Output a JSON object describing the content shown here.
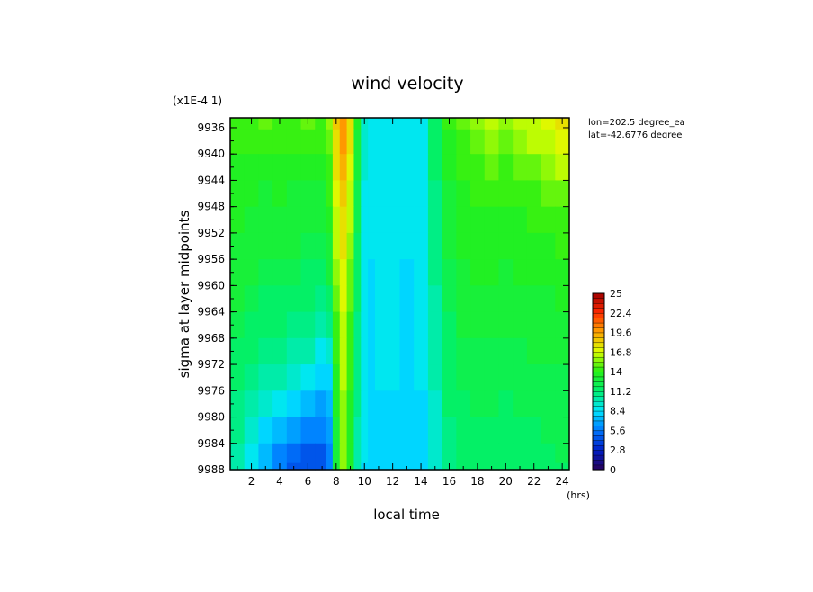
{
  "chart_data": {
    "type": "heatmap",
    "title": "wind velocity",
    "xlabel": "local time",
    "x_unit": "(hrs)",
    "ylabel": "sigma at layer midpoints",
    "y_scale_note": "(x1E-4 1)",
    "annotations": [
      "lon=202.5 degree_ea",
      "lat=-42.6776 degree"
    ],
    "x_ticks": [
      "2",
      "4",
      "6",
      "8",
      "10",
      "12",
      "14",
      "16",
      "18",
      "20",
      "22",
      "24"
    ],
    "y_ticks": [
      "9936",
      "9940",
      "9944",
      "9948",
      "9952",
      "9956",
      "9960",
      "9964",
      "9968",
      "9972",
      "9976",
      "9980",
      "9984",
      "9988"
    ],
    "xlim": [
      0.5,
      24.5
    ],
    "ylim": [
      9988,
      9934.5
    ],
    "colorbar": {
      "min": 0,
      "max": 25,
      "labels": [
        "25",
        "22.4",
        "19.6",
        "16.8",
        "14",
        "11.2",
        "8.4",
        "5.6",
        "2.8",
        "0"
      ]
    },
    "x": [
      1,
      2,
      3,
      4,
      5,
      6,
      7,
      7.5,
      8,
      8.5,
      9,
      9.5,
      10,
      10.5,
      11,
      12,
      13,
      14,
      15,
      16,
      17,
      18,
      19,
      20,
      21,
      22,
      23,
      24
    ],
    "y": [
      9934.5,
      9938,
      9942,
      9946,
      9950,
      9954,
      9958,
      9962,
      9966,
      9970,
      9974,
      9978,
      9982,
      9986,
      9988
    ],
    "z": [
      [
        14.5,
        14.5,
        15.0,
        14.5,
        14.5,
        15.0,
        14.5,
        15.5,
        18.5,
        20.0,
        18.0,
        13.5,
        9.5,
        8.8,
        9.0,
        9.0,
        8.8,
        9.0,
        11.5,
        14.0,
        15.0,
        15.5,
        16.0,
        15.5,
        16.0,
        16.5,
        17.0,
        17.5
      ],
      [
        14.0,
        14.0,
        14.5,
        14.0,
        14.0,
        14.5,
        14.0,
        15.0,
        18.0,
        19.5,
        17.5,
        13.0,
        9.5,
        8.6,
        9.0,
        9.0,
        8.6,
        9.0,
        11.5,
        13.5,
        14.5,
        15.0,
        15.5,
        15.0,
        15.5,
        16.0,
        16.5,
        17.0
      ],
      [
        13.8,
        13.5,
        13.5,
        13.8,
        13.5,
        13.5,
        13.5,
        14.5,
        17.5,
        19.0,
        17.0,
        12.5,
        9.2,
        8.5,
        8.8,
        8.8,
        8.5,
        8.8,
        11.2,
        13.2,
        14.2,
        14.5,
        14.8,
        14.5,
        14.8,
        15.0,
        15.5,
        16.0
      ],
      [
        13.5,
        13.2,
        13.0,
        13.2,
        13.0,
        13.0,
        13.0,
        14.0,
        17.0,
        18.5,
        16.5,
        12.2,
        9.0,
        8.5,
        8.8,
        8.8,
        8.5,
        8.8,
        11.0,
        13.0,
        13.8,
        14.0,
        14.2,
        14.0,
        14.2,
        14.5,
        14.8,
        15.2
      ],
      [
        13.2,
        13.0,
        12.8,
        13.0,
        12.8,
        12.6,
        12.5,
        13.5,
        16.5,
        18.0,
        16.0,
        12.0,
        9.0,
        8.4,
        8.7,
        8.7,
        8.4,
        8.7,
        10.8,
        12.8,
        13.5,
        13.8,
        13.8,
        13.6,
        13.8,
        14.0,
        14.2,
        14.5
      ],
      [
        13.0,
        12.8,
        12.5,
        12.6,
        12.5,
        12.3,
        12.0,
        13.0,
        16.0,
        17.5,
        15.5,
        11.8,
        8.8,
        8.4,
        8.6,
        8.6,
        8.4,
        8.6,
        10.6,
        12.5,
        13.2,
        13.5,
        13.5,
        13.3,
        13.5,
        13.6,
        13.8,
        14.0
      ],
      [
        12.8,
        12.5,
        12.2,
        12.2,
        12.0,
        11.8,
        11.5,
        12.5,
        15.5,
        17.0,
        15.0,
        11.5,
        8.8,
        8.3,
        8.6,
        8.6,
        8.3,
        8.6,
        10.5,
        12.3,
        13.0,
        13.2,
        13.2,
        13.0,
        13.2,
        13.3,
        13.4,
        13.6
      ],
      [
        12.5,
        12.2,
        11.8,
        11.8,
        11.5,
        11.2,
        10.8,
        11.5,
        15.0,
        16.8,
        14.8,
        11.2,
        8.7,
        8.3,
        8.5,
        8.5,
        8.3,
        8.5,
        10.3,
        12.0,
        12.8,
        13.0,
        12.9,
        12.8,
        12.9,
        13.0,
        13.1,
        13.2
      ],
      [
        12.2,
        11.8,
        11.4,
        11.2,
        11.0,
        10.6,
        10.0,
        10.5,
        14.5,
        16.5,
        14.5,
        11.0,
        8.6,
        8.2,
        8.5,
        8.5,
        8.2,
        8.5,
        10.2,
        11.8,
        12.5,
        12.7,
        12.6,
        12.5,
        12.6,
        12.7,
        12.8,
        12.9
      ],
      [
        11.8,
        11.4,
        10.8,
        10.6,
        10.2,
        9.8,
        9.0,
        9.5,
        14.0,
        16.2,
        14.2,
        10.8,
        8.6,
        8.2,
        8.4,
        8.4,
        8.2,
        8.4,
        10.0,
        11.6,
        12.2,
        12.4,
        12.4,
        12.2,
        12.4,
        12.5,
        12.6,
        12.6
      ],
      [
        11.4,
        10.8,
        10.2,
        9.8,
        9.2,
        8.8,
        7.8,
        8.2,
        13.5,
        16.0,
        14.0,
        10.6,
        8.5,
        8.1,
        8.4,
        8.4,
        8.1,
        8.4,
        9.8,
        11.4,
        12.0,
        12.2,
        12.2,
        12.0,
        12.2,
        12.2,
        12.3,
        12.4
      ],
      [
        11.0,
        10.2,
        9.2,
        8.5,
        8.0,
        7.5,
        6.8,
        7.5,
        13.2,
        15.8,
        13.8,
        10.5,
        8.5,
        8.1,
        8.3,
        8.3,
        8.1,
        8.3,
        9.7,
        11.2,
        11.8,
        12.0,
        12.0,
        11.8,
        12.0,
        12.0,
        12.1,
        12.2
      ],
      [
        10.6,
        9.5,
        8.2,
        7.2,
        6.5,
        6.0,
        5.8,
        6.8,
        13.0,
        15.6,
        13.6,
        10.4,
        8.4,
        8.0,
        8.3,
        8.3,
        8.0,
        8.3,
        9.6,
        11.0,
        11.6,
        11.8,
        11.8,
        11.6,
        11.8,
        11.8,
        11.9,
        12.0
      ],
      [
        10.2,
        9.0,
        7.5,
        6.2,
        5.2,
        4.8,
        4.8,
        6.0,
        12.8,
        15.5,
        13.5,
        10.3,
        8.4,
        8.0,
        8.2,
        8.2,
        8.0,
        8.2,
        9.5,
        10.8,
        11.5,
        11.7,
        11.7,
        11.5,
        11.7,
        11.7,
        11.8,
        11.9
      ],
      [
        10.0,
        8.8,
        7.2,
        5.8,
        4.8,
        4.5,
        4.5,
        5.8,
        12.7,
        15.4,
        13.4,
        10.2,
        8.3,
        8.0,
        8.2,
        8.2,
        8.0,
        8.2,
        9.4,
        10.7,
        11.4,
        11.6,
        11.6,
        11.4,
        11.6,
        11.6,
        11.7,
        11.8
      ]
    ]
  }
}
